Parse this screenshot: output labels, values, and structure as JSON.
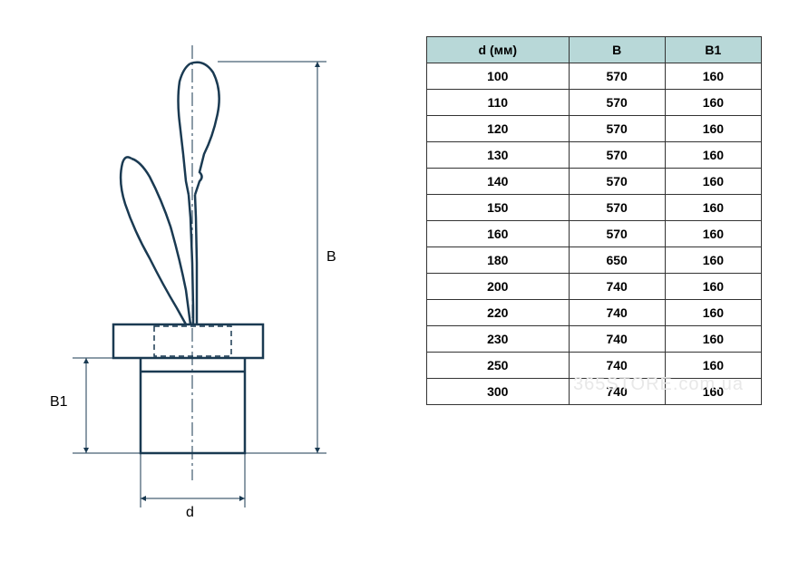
{
  "table": {
    "columns": [
      "d (мм)",
      "B",
      "B1"
    ],
    "rows": [
      [
        "100",
        "570",
        "160"
      ],
      [
        "110",
        "570",
        "160"
      ],
      [
        "120",
        "570",
        "160"
      ],
      [
        "130",
        "570",
        "160"
      ],
      [
        "140",
        "570",
        "160"
      ],
      [
        "150",
        "570",
        "160"
      ],
      [
        "160",
        "570",
        "160"
      ],
      [
        "180",
        "650",
        "160"
      ],
      [
        "200",
        "740",
        "160"
      ],
      [
        "220",
        "740",
        "160"
      ],
      [
        "230",
        "740",
        "160"
      ],
      [
        "250",
        "740",
        "160"
      ],
      [
        "300",
        "740",
        "160"
      ]
    ],
    "header_bg": "#b8d8d8",
    "border_color": "#333333",
    "cell_bg": "#ffffff",
    "font_size": 14,
    "font_weight": "bold"
  },
  "diagram": {
    "labels": {
      "B": "B",
      "B1": "B1",
      "d": "d"
    },
    "stroke_color": "#1a3a52",
    "stroke_width": 2,
    "dim_color": "#1a3a52",
    "dim_stroke_width": 1
  },
  "watermark": "365STORE.com.ua"
}
